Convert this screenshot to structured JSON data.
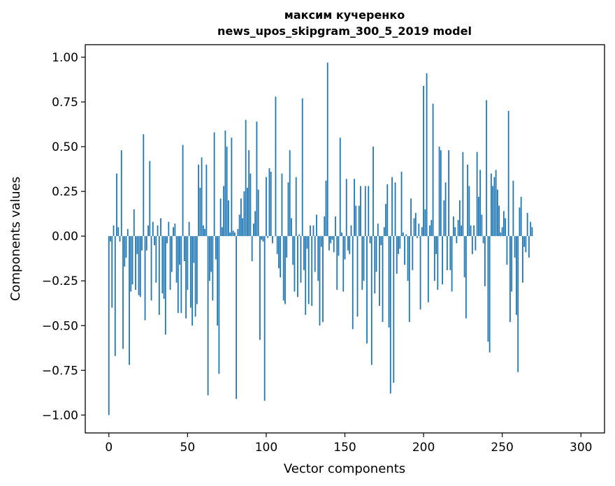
{
  "chart_data": {
    "type": "bar",
    "title": [
      "максим кучеренко",
      "news_upos_skipgram_300_5_2019 model"
    ],
    "xlabel": "Vector components",
    "ylabel": "Components values",
    "xlim": [
      -15,
      315
    ],
    "ylim": [
      -1.1,
      1.07
    ],
    "xticks": [
      0,
      50,
      100,
      150,
      200,
      250,
      300
    ],
    "yticks": [
      -1.0,
      -0.75,
      -0.5,
      -0.25,
      0.0,
      0.25,
      0.5,
      0.75,
      1.0
    ],
    "xtick_labels": [
      "0",
      "50",
      "100",
      "150",
      "200",
      "250",
      "300"
    ],
    "ytick_labels": [
      "−1.00",
      "−0.75",
      "−0.50",
      "−0.25",
      "0.00",
      "0.25",
      "0.50",
      "0.75",
      "1.00"
    ],
    "bar_color": "#1f77b4",
    "values": [
      -1.0,
      -0.03,
      -0.4,
      0.06,
      -0.67,
      0.35,
      0.05,
      -0.03,
      0.48,
      -0.63,
      -0.17,
      -0.12,
      0.04,
      -0.72,
      -0.31,
      -0.27,
      0.15,
      -0.3,
      -0.1,
      -0.33,
      -0.34,
      -0.08,
      0.57,
      -0.47,
      -0.08,
      0.06,
      0.42,
      -0.36,
      0.08,
      -0.05,
      -0.26,
      0.06,
      -0.44,
      0.1,
      -0.32,
      -0.35,
      -0.55,
      -0.04,
      0.08,
      -0.3,
      -0.2,
      0.05,
      0.07,
      -0.26,
      -0.43,
      -0.16,
      -0.43,
      0.51,
      -0.14,
      -0.46,
      -0.3,
      0.08,
      -0.4,
      -0.5,
      -0.15,
      -0.45,
      -0.38,
      0.4,
      0.27,
      0.44,
      0.06,
      0.04,
      0.4,
      -0.89,
      -0.25,
      -0.2,
      -0.36,
      0.58,
      -0.13,
      -0.5,
      -0.77,
      0.21,
      0.05,
      0.28,
      0.59,
      0.5,
      0.2,
      0.02,
      0.55,
      0.03,
      0.02,
      -0.91,
      0.04,
      0.12,
      0.21,
      0.1,
      0.25,
      0.65,
      0.27,
      0.48,
      0.35,
      -0.14,
      0.07,
      0.14,
      0.64,
      0.26,
      -0.58,
      -0.02,
      -0.03,
      -0.92,
      0.33,
      -0.01,
      0.38,
      0.36,
      -0.04,
      0.0,
      0.78,
      -0.1,
      -0.18,
      -0.23,
      0.35,
      -0.36,
      -0.38,
      -0.12,
      0.3,
      0.48,
      0.1,
      -0.16,
      -0.31,
      0.33,
      -0.34,
      0.01,
      -0.26,
      0.77,
      -0.19,
      -0.44,
      -0.07,
      -0.38,
      0.06,
      -0.39,
      0.06,
      -0.2,
      0.12,
      -0.25,
      -0.5,
      -0.06,
      -0.48,
      0.11,
      0.31,
      0.97,
      -0.08,
      -0.04,
      -0.02,
      -0.09,
      0.11,
      -0.3,
      -0.11,
      0.55,
      0.02,
      -0.31,
      -0.13,
      0.32,
      -0.08,
      -0.1,
      0.06,
      -0.52,
      0.32,
      0.17,
      -0.45,
      0.17,
      0.28,
      -0.3,
      -0.25,
      0.28,
      -0.6,
      0.28,
      -0.04,
      -0.72,
      0.5,
      -0.32,
      -0.2,
      0.07,
      -0.39,
      -0.05,
      -0.48,
      0.05,
      0.18,
      0.29,
      -0.51,
      -0.88,
      0.33,
      -0.82,
      0.3,
      -0.21,
      -0.1,
      -0.07,
      0.36,
      0.02,
      -0.16,
      0.01,
      -0.25,
      -0.48,
      0.21,
      -0.19,
      0.1,
      0.13,
      -0.01,
      0.07,
      -0.41,
      0.05,
      0.84,
      0.15,
      0.91,
      -0.37,
      0.06,
      0.09,
      0.74,
      -0.25,
      -0.1,
      -0.3,
      0.5,
      0.48,
      -0.27,
      0.2,
      0.3,
      -0.19,
      0.48,
      -0.19,
      -0.31,
      0.11,
      0.05,
      -0.04,
      0.09,
      0.2,
      0.06,
      0.47,
      -0.23,
      -0.46,
      0.4,
      0.28,
      0.06,
      -0.1,
      0.06,
      -0.08,
      0.47,
      0.22,
      0.37,
      0.12,
      -0.04,
      -0.28,
      0.76,
      -0.59,
      -0.65,
      0.35,
      0.28,
      0.33,
      0.37,
      0.26,
      0.17,
      0.02,
      0.05,
      0.14,
      0.1,
      -0.16,
      0.7,
      -0.48,
      -0.31,
      0.31,
      -0.12,
      -0.44,
      -0.76,
      0.16,
      0.22,
      -0.26,
      -0.06,
      -0.09,
      0.13,
      -0.12,
      0.08,
      0.05
    ]
  }
}
